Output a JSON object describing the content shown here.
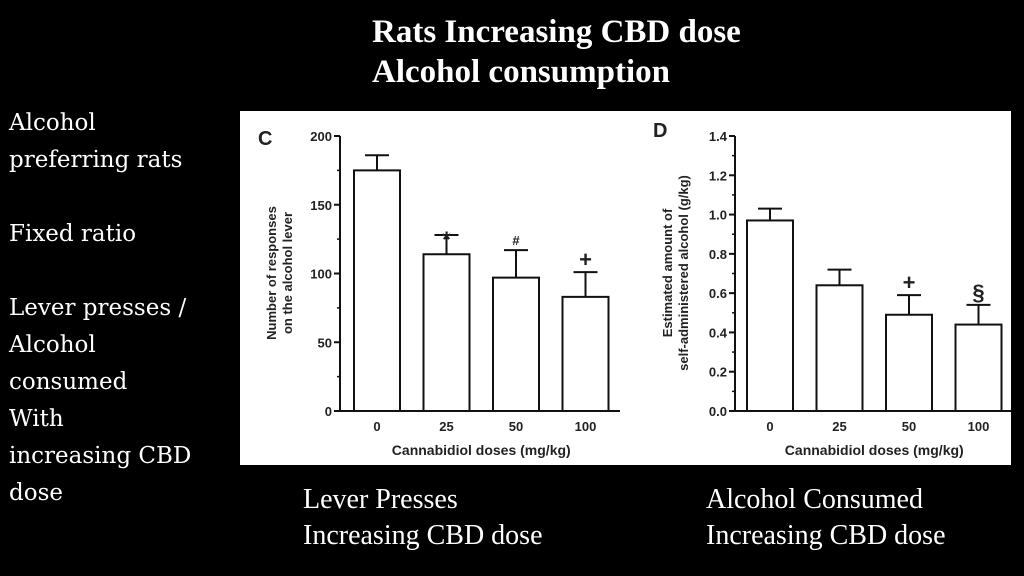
{
  "title": {
    "line1": "Rats Increasing CBD dose",
    "line2": "Alcohol consumption"
  },
  "sidebar": {
    "lines": [
      "Alcohol",
      "preferring rats",
      "",
      "Fixed ratio",
      "",
      "Lever presses /",
      "Alcohol",
      "consumed",
      "With",
      "increasing CBD",
      "dose"
    ]
  },
  "captions": {
    "left": {
      "line1": "Lever Presses",
      "line2": "Increasing CBD dose"
    },
    "right": {
      "line1": "Alcohol Consumed",
      "line2": "Increasing CBD dose"
    }
  },
  "chart_data": [
    {
      "type": "bar",
      "panel": "C",
      "title": "",
      "categories": [
        "0",
        "25",
        "50",
        "100"
      ],
      "values": [
        175,
        114,
        97,
        83
      ],
      "error_upper": [
        186,
        128,
        117,
        101
      ],
      "annotations": [
        "",
        "*",
        "#",
        "+"
      ],
      "xlabel": "Cannabidiol doses (mg/kg)",
      "ylabel": "Number of responses on the alcohol lever",
      "ylabel_lines": [
        "Number of responses",
        "on the alcohol lever"
      ],
      "ylim": [
        0,
        200
      ],
      "yticks": [
        0,
        50,
        100,
        150,
        200
      ],
      "ytick_labels": [
        "0",
        "50",
        "100",
        "150",
        "200"
      ],
      "minor_tick_step": 25,
      "grid": false
    },
    {
      "type": "bar",
      "panel": "D",
      "title": "",
      "categories": [
        "0",
        "25",
        "50",
        "100"
      ],
      "values": [
        0.97,
        0.64,
        0.49,
        0.44
      ],
      "error_upper": [
        1.03,
        0.72,
        0.59,
        0.54
      ],
      "annotations": [
        "",
        "",
        "+",
        "§"
      ],
      "xlabel": "Cannabidiol doses (mg/kg)",
      "ylabel": "Estimated amount of self-administered alcohol (g/kg)",
      "ylabel_lines": [
        "Estimated amount of",
        "self-administered alcohol (g/kg)"
      ],
      "ylim": [
        0,
        1.4
      ],
      "yticks": [
        0,
        0.2,
        0.4,
        0.6,
        0.8,
        1.0,
        1.2,
        1.4
      ],
      "ytick_labels": [
        "0.0",
        "0.2",
        "0.4",
        "0.6",
        "0.8",
        "1.0",
        "1.2",
        "1.4"
      ],
      "minor_tick_step": 0.1,
      "grid": false
    }
  ]
}
